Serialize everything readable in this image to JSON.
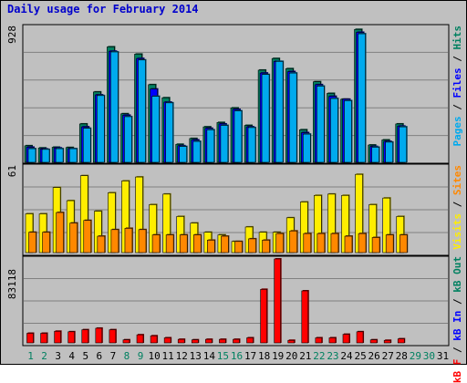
{
  "title": "Daily usage for February 2014",
  "panels": {
    "top": {
      "max_label": "928",
      "legend": [
        {
          "text": "Pages",
          "color": "#00aaee"
        },
        {
          "text": " / ",
          "color": "#000000"
        },
        {
          "text": "Files",
          "color": "#0000ff"
        },
        {
          "text": " / ",
          "color": "#000000"
        },
        {
          "text": "Hits",
          "color": "#008060"
        }
      ]
    },
    "middle": {
      "max_label": "61",
      "legend": [
        {
          "text": "Visits",
          "color": "#ffee00"
        },
        {
          "text": " / ",
          "color": "#000000"
        },
        {
          "text": "Sites",
          "color": "#ff8800"
        }
      ]
    },
    "bottom": {
      "max_label": "83118",
      "legend": [
        {
          "text": "kB F",
          "color": "#ff0000"
        },
        {
          "text": " / ",
          "color": "#000000"
        },
        {
          "text": "kB In",
          "color": "#0000ff"
        },
        {
          "text": " / ",
          "color": "#000000"
        },
        {
          "text": "kB Out",
          "color": "#008060"
        }
      ]
    }
  },
  "colors": {
    "hits": "#008060",
    "files": "#0000ff",
    "pages": "#00aaee",
    "visits": "#ffee00",
    "sites": "#ff8800",
    "kbf": "#ff0000",
    "weekday_label": "#000000",
    "weekend_label": "#008060"
  },
  "chart_data": {
    "type": "bar",
    "categories": [
      "1",
      "2",
      "3",
      "4",
      "5",
      "6",
      "7",
      "8",
      "9",
      "10",
      "11",
      "12",
      "13",
      "14",
      "15",
      "16",
      "17",
      "18",
      "19",
      "20",
      "21",
      "22",
      "23",
      "24",
      "25",
      "26",
      "27",
      "28",
      "29",
      "30",
      "31"
    ],
    "weekend_days": [
      "1",
      "2",
      "8",
      "9",
      "15",
      "16",
      "22",
      "23",
      "29",
      "30"
    ],
    "panels": [
      {
        "name": "top",
        "ylim": [
          0,
          928
        ],
        "series": [
          {
            "name": "Hits",
            "values": [
              120,
              105,
              110,
              108,
              270,
              490,
              800,
              340,
              750,
              540,
              450,
              130,
              170,
              250,
              280,
              380,
              260,
              640,
              720,
              650,
              230,
              560,
              480,
              440,
              920,
              125,
              160,
              270,
              0,
              0,
              0
            ]
          },
          {
            "name": "Files",
            "values": [
              110,
              98,
              105,
              100,
              250,
              470,
              770,
              330,
              720,
              510,
              420,
              120,
              160,
              240,
              270,
              370,
              250,
              620,
              700,
              630,
              210,
              540,
              460,
              440,
              900,
              115,
              150,
              255,
              0,
              0,
              0
            ]
          },
          {
            "name": "Pages",
            "values": [
              100,
              95,
              100,
              100,
              240,
              465,
              765,
              320,
              710,
              460,
              415,
              115,
              150,
              230,
              260,
              360,
              245,
              610,
              700,
              620,
              200,
              530,
              445,
              430,
              890,
              110,
              145,
              250,
              0,
              0,
              0
            ]
          }
        ]
      },
      {
        "name": "middle",
        "ylim": [
          0,
          61
        ],
        "series": [
          {
            "name": "Visits",
            "values": [
              26,
              26,
              46,
              36,
              55,
              28,
              42,
              51,
              54,
              33,
              41,
              24,
              19,
              12,
              10,
              5,
              16,
              12,
              12,
              23,
              35,
              40,
              41,
              40,
              56,
              33,
              38,
              24,
              0,
              0,
              0
            ]
          },
          {
            "name": "Sites",
            "values": [
              12,
              12,
              27,
              19,
              21,
              9,
              14,
              15,
              14,
              10,
              10,
              10,
              10,
              6,
              9,
              5,
              7,
              6,
              11,
              13,
              11,
              11,
              11,
              9,
              11,
              8,
              10,
              10,
              0,
              0,
              0
            ]
          }
        ]
      },
      {
        "name": "bottom",
        "ylim": [
          0,
          83118
        ],
        "series": [
          {
            "name": "kB F",
            "values": [
              9500,
              9500,
              11500,
              11000,
              13000,
              14500,
              13000,
              3000,
              8000,
              7000,
              5000,
              3500,
              3000,
              3500,
              3500,
              3500,
              5000,
              53000,
              83118,
              2500,
              51500,
              5000,
              5000,
              8500,
              11000,
              3000,
              2500,
              4000,
              0,
              0,
              0
            ]
          }
        ]
      }
    ]
  }
}
